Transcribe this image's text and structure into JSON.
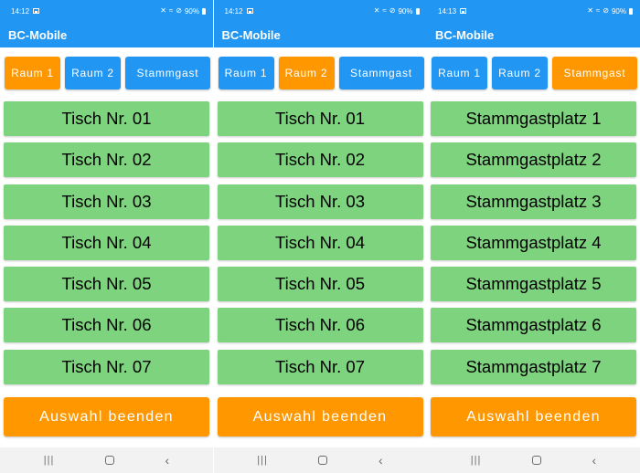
{
  "screens": [
    {
      "status": {
        "time": "14:12",
        "battery": "90%"
      },
      "app_title": "BC-Mobile",
      "tabs": [
        {
          "label": "Raum 1",
          "active": true
        },
        {
          "label": "Raum 2",
          "active": false
        },
        {
          "label": "Stammgast",
          "active": false
        }
      ],
      "tables": [
        "Tisch Nr. 01",
        "Tisch Nr. 02",
        "Tisch Nr. 03",
        "Tisch Nr. 04",
        "Tisch Nr. 05",
        "Tisch Nr. 06",
        "Tisch Nr. 07"
      ],
      "finish_label": "Auswahl beenden"
    },
    {
      "status": {
        "time": "14:12",
        "battery": "90%"
      },
      "app_title": "BC-Mobile",
      "tabs": [
        {
          "label": "Raum 1",
          "active": false
        },
        {
          "label": "Raum 2",
          "active": true
        },
        {
          "label": "Stammgast",
          "active": false
        }
      ],
      "tables": [
        "Tisch Nr. 01",
        "Tisch Nr. 02",
        "Tisch Nr. 03",
        "Tisch Nr. 04",
        "Tisch Nr. 05",
        "Tisch Nr. 06",
        "Tisch Nr. 07"
      ],
      "finish_label": "Auswahl beenden"
    },
    {
      "status": {
        "time": "14:13",
        "battery": "90%"
      },
      "app_title": "BC-Mobile",
      "tabs": [
        {
          "label": "Raum 1",
          "active": false
        },
        {
          "label": "Raum 2",
          "active": false
        },
        {
          "label": "Stammgast",
          "active": true
        }
      ],
      "tables": [
        "Stammgastplatz 1",
        "Stammgastplatz 2",
        "Stammgastplatz 3",
        "Stammgastplatz 4",
        "Stammgastplatz 5",
        "Stammgastplatz 6",
        "Stammgastplatz 7"
      ],
      "finish_label": "Auswahl beenden"
    }
  ],
  "colors": {
    "app_bar": "#2196f3",
    "tab_active": "#ff9800",
    "tab_inactive": "#2196f3",
    "table_button": "#7ed37e",
    "finish_button": "#ff9800",
    "nav_bar": "#f2f2f2"
  },
  "icons": {
    "status": [
      "image-icon",
      "mute-icon",
      "wifi-icon",
      "do-not-disturb-icon",
      "battery-icon"
    ],
    "nav": [
      "recents-icon",
      "home-icon",
      "back-icon"
    ]
  }
}
